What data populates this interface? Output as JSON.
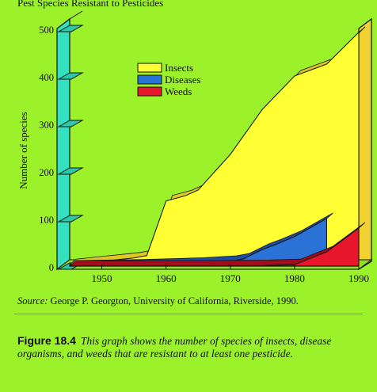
{
  "header": {
    "title": "Pest Species Resistant to Pesticides"
  },
  "source": {
    "label": "Source:",
    "text": " George P. Georgton, University of California, Riverside, 1990."
  },
  "caption": {
    "figure": "Figure 18.4",
    "text": "This graph shows the number of species of insects, disease organisms, and weeds that are resistant to at least one pesticide."
  },
  "colors": {
    "background": "#9cf22a",
    "insects": "#ffff33",
    "diseases": "#2b72d6",
    "weeds": "#e8162b",
    "axis_bar": "#33e0c0"
  },
  "chart_data": {
    "type": "area",
    "title": "Pest Species Resistant to Pesticides",
    "ylabel": "Number of species",
    "xlabel": "",
    "xlim": [
      1945,
      1990
    ],
    "ylim": [
      0,
      500
    ],
    "x_ticks": [
      1950,
      1960,
      1970,
      1980,
      1990
    ],
    "y_ticks": [
      0,
      100,
      200,
      300,
      400,
      500
    ],
    "grid": false,
    "stacked": false,
    "legend_position": "top-center",
    "series": [
      {
        "name": "Insects",
        "color": "#ffff33",
        "x": [
          1945,
          1950,
          1955,
          1957,
          1960,
          1963,
          1965,
          1970,
          1975,
          1980,
          1983,
          1985,
          1990
        ],
        "values": [
          3,
          10,
          17,
          22,
          137,
          148,
          160,
          235,
          330,
          400,
          415,
          425,
          492
        ]
      },
      {
        "name": "Diseases",
        "color": "#2b72d6",
        "x": [
          1945,
          1955,
          1960,
          1965,
          1970,
          1972,
          1975,
          1977,
          1980,
          1985
        ],
        "values": [
          0,
          2,
          4,
          6,
          10,
          15,
          35,
          45,
          62,
          100
        ]
      },
      {
        "name": "Weeds",
        "color": "#e8162b",
        "x": [
          1945,
          1965,
          1975,
          1980,
          1985,
          1990
        ],
        "values": [
          0,
          0,
          1,
          3,
          30,
          80
        ]
      }
    ]
  }
}
